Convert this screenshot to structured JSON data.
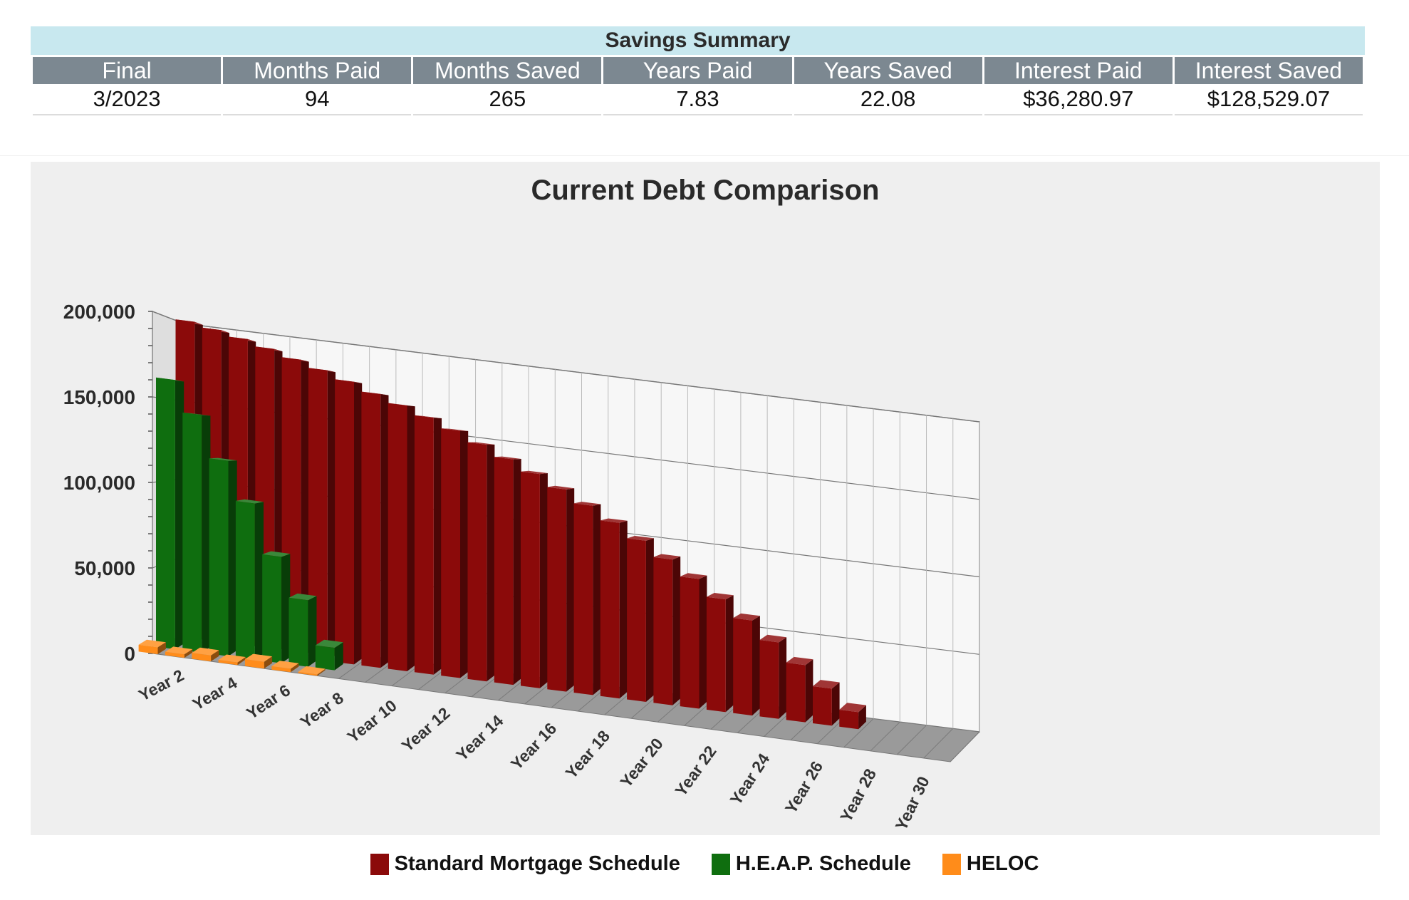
{
  "summary": {
    "title": "Savings Summary",
    "headers": [
      "Final",
      "Months Paid",
      "Months Saved",
      "Years Paid",
      "Years Saved",
      "Interest Paid",
      "Interest Saved"
    ],
    "values": [
      "3/2023",
      "94",
      "265",
      "7.83",
      "22.08",
      "$36,280.97",
      "$128,529.07"
    ]
  },
  "chart_data": {
    "type": "bar",
    "style": "3d",
    "title": "Current Debt Comparison",
    "categories": [
      "Year 1",
      "Year 2",
      "Year 3",
      "Year 4",
      "Year 5",
      "Year 6",
      "Year 7",
      "Year 8",
      "Year 9",
      "Year 10",
      "Year 11",
      "Year 12",
      "Year 13",
      "Year 14",
      "Year 15",
      "Year 16",
      "Year 17",
      "Year 18",
      "Year 19",
      "Year 20",
      "Year 21",
      "Year 22",
      "Year 23",
      "Year 24",
      "Year 25",
      "Year 26",
      "Year 27",
      "Year 28",
      "Year 29",
      "Year 30"
    ],
    "tick_labels": [
      "Year 2",
      "Year 4",
      "Year 6",
      "Year 8",
      "Year 10",
      "Year 12",
      "Year 14",
      "Year 16",
      "Year 18",
      "Year 20",
      "Year 22",
      "Year 24",
      "Year 26",
      "Year 28",
      "Year 30"
    ],
    "ylim": [
      0,
      200000
    ],
    "yticks": [
      "200,000",
      "150,000",
      "100,000",
      "50,000",
      "0"
    ],
    "grid": true,
    "legend_position": "bottom",
    "series": [
      {
        "name": "Standard Mortgage Schedule",
        "color": "#8b0a0a",
        "values": [
          200000,
          197000,
          193500,
          189500,
          185000,
          180500,
          175500,
          170000,
          165000,
          159500,
          153500,
          147000,
          140000,
          133000,
          125500,
          117500,
          109000,
          100000,
          90500,
          80500,
          70000,
          59000,
          47500,
          35500,
          23000,
          10500,
          0,
          0,
          0,
          0
        ]
      },
      {
        "name": "H.E.A.P. Schedule",
        "color": "#0f6e0f",
        "values": [
          162000,
          143000,
          117500,
          94000,
          64000,
          40000,
          13500,
          0,
          0,
          0,
          0,
          0,
          0,
          0,
          0,
          0,
          0,
          0,
          0,
          0,
          0,
          0,
          0,
          0,
          0,
          0,
          0,
          0,
          0,
          0
        ]
      },
      {
        "name": "HELOC",
        "color": "#ff8c1a",
        "values": [
          4000,
          2000,
          3500,
          1500,
          4000,
          2000,
          800,
          0,
          0,
          0,
          0,
          0,
          0,
          0,
          0,
          0,
          0,
          0,
          0,
          0,
          0,
          0,
          0,
          0,
          0,
          0,
          0,
          0,
          0,
          0
        ]
      }
    ],
    "fixed_series_name": "Standard Mortgage Schedule",
    "heap_series_name": "H.E.A.P. Schedule",
    "heloc_series_name": "HELOC"
  }
}
